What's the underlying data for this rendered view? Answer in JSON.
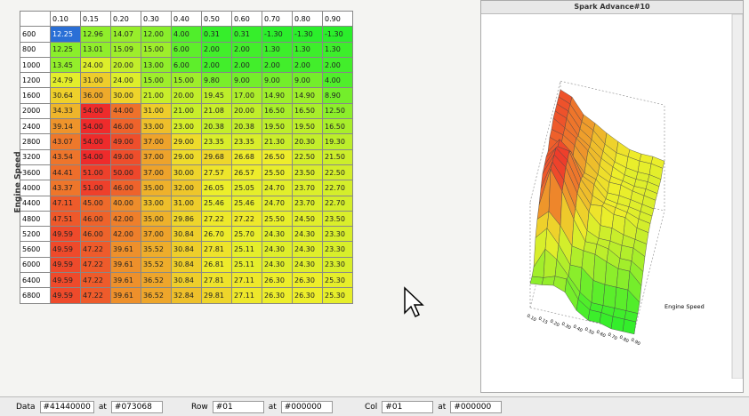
{
  "table": {
    "axis_label": "Engine Speed",
    "columns": [
      "0.10",
      "0.15",
      "0.20",
      "0.30",
      "0.40",
      "0.50",
      "0.60",
      "0.70",
      "0.80",
      "0.90"
    ],
    "rows": [
      {
        "label": "600",
        "values": [
          "12.25",
          "12.96",
          "14.07",
          "12.00",
          "4.00",
          "0.31",
          "0.31",
          "-1.30",
          "-1.30",
          "-1.30"
        ]
      },
      {
        "label": "800",
        "values": [
          "12.25",
          "13.01",
          "15.09",
          "15.00",
          "6.00",
          "2.00",
          "2.00",
          "1.30",
          "1.30",
          "1.30"
        ]
      },
      {
        "label": "1000",
        "values": [
          "13.45",
          "24.00",
          "20.00",
          "13.00",
          "6.00",
          "2.00",
          "2.00",
          "2.00",
          "2.00",
          "2.00"
        ]
      },
      {
        "label": "1200",
        "values": [
          "24.79",
          "31.00",
          "24.00",
          "15.00",
          "15.00",
          "9.80",
          "9.00",
          "9.00",
          "9.00",
          "4.00"
        ]
      },
      {
        "label": "1600",
        "values": [
          "30.64",
          "36.00",
          "30.00",
          "21.00",
          "20.00",
          "19.45",
          "17.00",
          "14.90",
          "14.90",
          "8.90"
        ]
      },
      {
        "label": "2000",
        "values": [
          "34.33",
          "54.00",
          "44.00",
          "31.00",
          "21.00",
          "21.08",
          "20.00",
          "16.50",
          "16.50",
          "12.50"
        ]
      },
      {
        "label": "2400",
        "values": [
          "39.14",
          "54.00",
          "46.00",
          "33.00",
          "23.00",
          "20.38",
          "20.38",
          "19.50",
          "19.50",
          "16.50"
        ]
      },
      {
        "label": "2800",
        "values": [
          "43.07",
          "54.00",
          "49.00",
          "37.00",
          "29.00",
          "23.35",
          "23.35",
          "21.30",
          "20.30",
          "19.30"
        ]
      },
      {
        "label": "3200",
        "values": [
          "43.54",
          "54.00",
          "49.00",
          "37.00",
          "29.00",
          "29.68",
          "26.68",
          "26.50",
          "22.50",
          "21.50"
        ]
      },
      {
        "label": "3600",
        "values": [
          "44.41",
          "51.00",
          "50.00",
          "37.00",
          "30.00",
          "27.57",
          "26.57",
          "25.50",
          "23.50",
          "22.50"
        ]
      },
      {
        "label": "4000",
        "values": [
          "43.37",
          "51.00",
          "46.00",
          "35.00",
          "32.00",
          "26.05",
          "25.05",
          "24.70",
          "23.70",
          "22.70"
        ]
      },
      {
        "label": "4400",
        "values": [
          "47.11",
          "45.00",
          "40.00",
          "33.00",
          "31.00",
          "25.46",
          "25.46",
          "24.70",
          "23.70",
          "22.70"
        ]
      },
      {
        "label": "4800",
        "values": [
          "47.51",
          "46.00",
          "42.00",
          "35.00",
          "29.86",
          "27.22",
          "27.22",
          "25.50",
          "24.50",
          "23.50"
        ]
      },
      {
        "label": "5200",
        "values": [
          "49.59",
          "46.00",
          "42.00",
          "37.00",
          "30.84",
          "26.70",
          "25.70",
          "24.30",
          "24.30",
          "23.30"
        ]
      },
      {
        "label": "5600",
        "values": [
          "49.59",
          "47.22",
          "39.61",
          "35.52",
          "30.84",
          "27.81",
          "25.11",
          "24.30",
          "24.30",
          "23.30"
        ]
      },
      {
        "label": "6000",
        "values": [
          "49.59",
          "47.22",
          "39.61",
          "35.52",
          "30.84",
          "26.81",
          "25.11",
          "24.30",
          "24.30",
          "23.30"
        ]
      },
      {
        "label": "6400",
        "values": [
          "49.59",
          "47.22",
          "39.61",
          "36.52",
          "30.84",
          "27.81",
          "27.11",
          "26.30",
          "26.30",
          "25.30"
        ]
      },
      {
        "label": "6800",
        "values": [
          "49.59",
          "47.22",
          "39.61",
          "36.52",
          "32.84",
          "29.81",
          "27.11",
          "26.30",
          "26.30",
          "25.30"
        ]
      }
    ]
  },
  "chart3d": {
    "title": "Spark Advance#10",
    "axis_label": "Engine Speed"
  },
  "status_bar": [
    {
      "label": "Data",
      "value": "#41440000",
      "at": "at",
      "at_value": "#073068"
    },
    {
      "label": "Row",
      "value": "#01",
      "at": "at",
      "at_value": "#000000"
    },
    {
      "label": "Col",
      "value": "#01",
      "at": "at",
      "at_value": "#000000"
    }
  ]
}
